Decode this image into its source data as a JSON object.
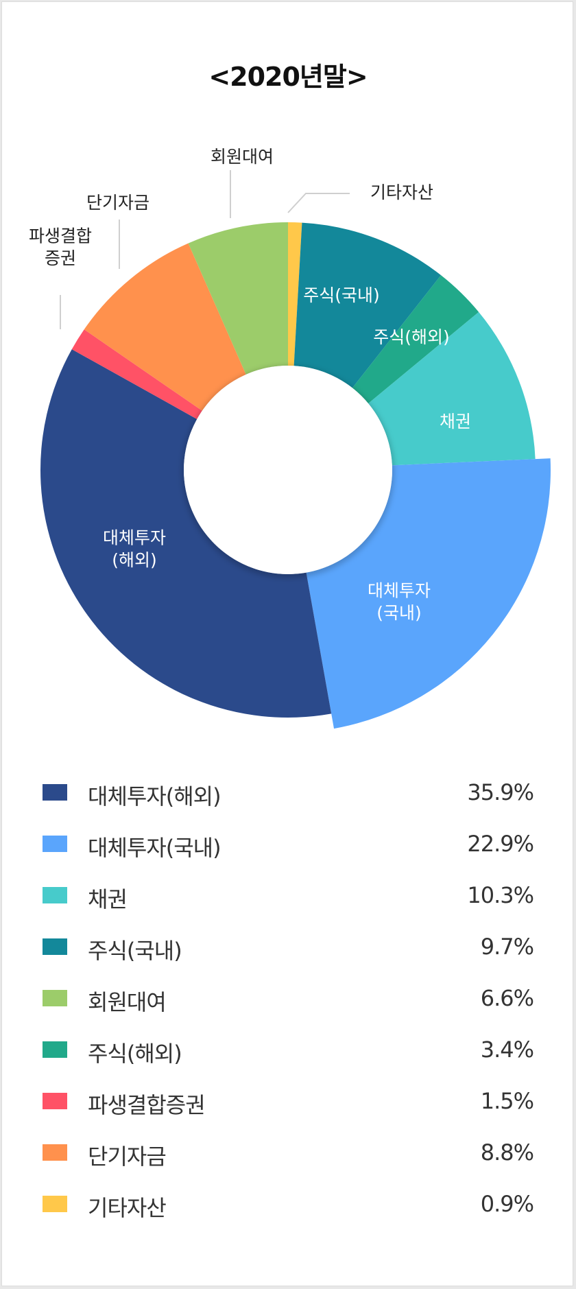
{
  "chart_data": {
    "type": "pie",
    "title": "<2020년말>",
    "slices": [
      {
        "label": "대체투자(해외)",
        "chart_label": "대체투자\n(해외)",
        "value": 35.9,
        "value_text": "35.9%",
        "color": "#2b4a8b",
        "label_position": "inside"
      },
      {
        "label": "대체투자(국내)",
        "chart_label": "대체투자\n(국내)",
        "value": 22.9,
        "value_text": "22.9%",
        "color": "#5aa5fc",
        "label_position": "inside"
      },
      {
        "label": "채권",
        "chart_label": "채권",
        "value": 10.3,
        "value_text": "10.3%",
        "color": "#47cbcb",
        "label_position": "inside"
      },
      {
        "label": "주식(국내)",
        "chart_label": "주식(국내)",
        "value": 9.7,
        "value_text": "9.7%",
        "color": "#13889a",
        "label_position": "inside"
      },
      {
        "label": "회원대여",
        "chart_label": "회원대여",
        "value": 6.6,
        "value_text": "6.6%",
        "color": "#9ccc6a",
        "label_position": "outside"
      },
      {
        "label": "주식(해외)",
        "chart_label": "주식(해외)",
        "value": 3.4,
        "value_text": "3.4%",
        "color": "#21a98a",
        "label_position": "inside"
      },
      {
        "label": "파생결합증권",
        "chart_label": "파생결합\n증권",
        "value": 1.5,
        "value_text": "1.5%",
        "color": "#ff5266",
        "label_position": "outside"
      },
      {
        "label": "단기자금",
        "chart_label": "단기자금",
        "value": 8.8,
        "value_text": "8.8%",
        "color": "#ff914d",
        "label_position": "outside"
      },
      {
        "label": "기타자산",
        "chart_label": "기타자산",
        "value": 0.9,
        "value_text": "0.9%",
        "color": "#ffc84a",
        "label_position": "outside"
      }
    ]
  }
}
